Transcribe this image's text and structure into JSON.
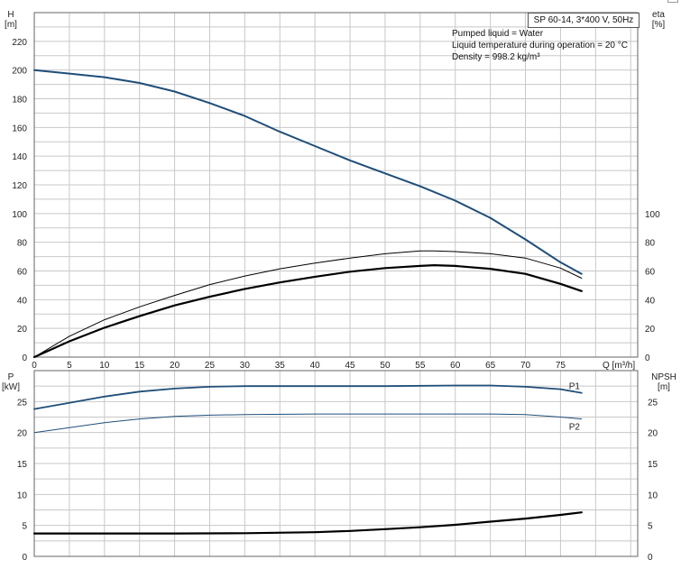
{
  "title": "SP 60-14, 3*400 V, 50Hz",
  "info": {
    "liquid": "Pumped liquid = Water",
    "temperature": "Liquid temperature during operation = 20 °C",
    "density": "Density = 998.2 kg/m³"
  },
  "colors": {
    "head": "#1f4e79",
    "power": "#1f4e79",
    "eta": "#000000",
    "npsh": "#000000",
    "grid": "#c8c8c8"
  },
  "chart_data": [
    {
      "type": "line",
      "title": "",
      "xlabel": "Q [m³/h]",
      "ylabel": "H\n[m]",
      "y2label": "eta\n[%]",
      "xlim": [
        0,
        86
      ],
      "x_ticks": [
        0,
        5,
        10,
        15,
        20,
        25,
        30,
        35,
        40,
        45,
        50,
        55,
        60,
        65,
        70,
        75
      ],
      "ylim": [
        0,
        240
      ],
      "y_ticks": [
        0,
        20,
        40,
        60,
        80,
        100,
        120,
        140,
        160,
        180,
        200,
        220
      ],
      "y2lim": [
        0,
        240
      ],
      "y2_ticks": [
        0,
        20,
        40,
        60,
        80,
        100
      ],
      "grid": true,
      "series": [
        {
          "axis": "y",
          "x": [
            0,
            5,
            10,
            15,
            20,
            25,
            30,
            35,
            40,
            45,
            50,
            55,
            60,
            65,
            70,
            75,
            78
          ],
          "y": [
            200,
            197.5,
            195,
            191,
            185,
            177,
            168,
            157,
            147,
            137,
            128,
            119,
            109,
            97,
            82,
            66,
            58
          ]
        },
        {
          "axis": "y2",
          "x": [
            0,
            5,
            10,
            15,
            20,
            25,
            30,
            35,
            40,
            45,
            50,
            55,
            57,
            60,
            65,
            70,
            75,
            78
          ],
          "y": [
            0,
            14.5,
            26,
            35,
            43,
            50.5,
            56.5,
            61.5,
            65.5,
            69,
            72,
            74,
            74,
            73.5,
            72,
            69,
            62,
            55
          ]
        },
        {
          "axis": "y2",
          "x": [
            0,
            5,
            10,
            15,
            20,
            25,
            30,
            35,
            40,
            45,
            50,
            55,
            57,
            60,
            65,
            70,
            75,
            78
          ],
          "y": [
            0,
            11,
            20.5,
            28.5,
            36,
            42,
            47.5,
            52,
            56,
            59.5,
            62,
            63.5,
            64,
            63.5,
            61.5,
            58,
            51,
            46
          ]
        }
      ]
    },
    {
      "type": "line",
      "title": "",
      "ylabel": "P\n[kW]",
      "y2label": "NPSH\n[m]",
      "xlim": [
        0,
        86
      ],
      "ylim": [
        0,
        30
      ],
      "y_ticks": [
        0,
        5,
        10,
        15,
        20,
        25
      ],
      "y2lim": [
        0,
        30
      ],
      "y2_ticks": [
        0,
        5,
        10,
        15,
        20,
        25
      ],
      "grid": true,
      "series": [
        {
          "name": "P1",
          "axis": "y",
          "x": [
            0,
            5,
            10,
            15,
            20,
            25,
            30,
            40,
            50,
            60,
            65,
            70,
            75,
            78
          ],
          "y": [
            23.8,
            24.8,
            25.8,
            26.6,
            27.1,
            27.4,
            27.5,
            27.5,
            27.5,
            27.6,
            27.6,
            27.4,
            27,
            26.4
          ]
        },
        {
          "name": "P2",
          "axis": "y",
          "x": [
            0,
            5,
            10,
            15,
            20,
            25,
            30,
            40,
            50,
            60,
            65,
            70,
            75,
            78
          ],
          "y": [
            20,
            20.8,
            21.6,
            22.2,
            22.6,
            22.8,
            22.9,
            23,
            23,
            23,
            23,
            22.9,
            22.5,
            22.2
          ]
        },
        {
          "axis": "y2",
          "x": [
            0,
            5,
            10,
            20,
            30,
            40,
            45,
            50,
            55,
            60,
            65,
            70,
            75,
            78
          ],
          "y": [
            3.7,
            3.7,
            3.7,
            3.7,
            3.75,
            3.9,
            4.1,
            4.4,
            4.7,
            5.1,
            5.6,
            6.1,
            6.7,
            7.1
          ]
        }
      ]
    }
  ]
}
